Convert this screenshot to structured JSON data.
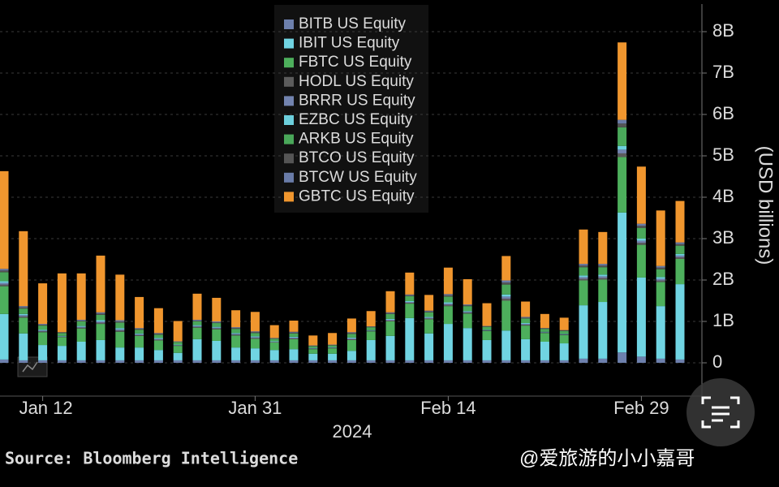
{
  "chart_data": {
    "type": "stacked_bar",
    "categories": [
      null,
      null,
      "Jan 12",
      null,
      null,
      null,
      null,
      null,
      null,
      null,
      null,
      null,
      null,
      "Jan 31",
      null,
      null,
      null,
      null,
      null,
      null,
      null,
      null,
      null,
      "Feb 14",
      null,
      null,
      null,
      null,
      null,
      null,
      null,
      null,
      null,
      "Feb 29",
      null,
      null
    ],
    "x_label": "2024",
    "y_label": "(USD billions)",
    "ylim": [
      0,
      8.6
    ],
    "yticks": [
      0,
      {
        "value": 1,
        "label": "1B"
      },
      {
        "value": 2,
        "label": "2B"
      },
      {
        "value": 3,
        "label": "3B"
      },
      {
        "value": 4,
        "label": "4B"
      },
      {
        "value": 5,
        "label": "5B"
      },
      {
        "value": 6,
        "label": "6B"
      },
      {
        "value": 7,
        "label": "7B"
      },
      {
        "value": 8,
        "label": "8B"
      }
    ],
    "grid": true,
    "legend": "top",
    "source": "Source: Bloomberg Intelligence",
    "series": [
      {
        "name": "BITB US Equity",
        "color": "#6d80ad",
        "values": [
          0.08,
          0.06,
          0.06,
          0.06,
          0.06,
          0.06,
          0.06,
          0.06,
          0.06,
          0.06,
          0.06,
          0.06,
          0.06,
          0.06,
          0.06,
          0.06,
          0.06,
          0.06,
          0.06,
          0.06,
          0.06,
          0.06,
          0.06,
          0.06,
          0.06,
          0.06,
          0.06,
          0.06,
          0.06,
          0.06,
          0.1,
          0.1,
          0.25,
          0.15,
          0.1,
          0.08
        ]
      },
      {
        "name": "IBIT US Equity",
        "color": "#70d4e2",
        "values": [
          1.1,
          0.65,
          0.37,
          0.35,
          0.45,
          0.49,
          0.31,
          0.31,
          0.25,
          0.18,
          0.51,
          0.47,
          0.31,
          0.29,
          0.25,
          0.27,
          0.16,
          0.16,
          0.23,
          0.49,
          0.59,
          1.02,
          0.65,
          0.88,
          0.78,
          0.49,
          0.72,
          0.51,
          0.45,
          0.41,
          1.29,
          1.37,
          3.38,
          1.91,
          1.27,
          1.82
        ]
      },
      {
        "name": "FBTC US Equity",
        "color": "#4daf5c",
        "values": [
          0.67,
          0.38,
          0.31,
          0.21,
          0.32,
          0.39,
          0.38,
          0.28,
          0.23,
          0.17,
          0.28,
          0.28,
          0.29,
          0.23,
          0.18,
          0.24,
          0.11,
          0.13,
          0.26,
          0.21,
          0.35,
          0.35,
          0.34,
          0.43,
          0.35,
          0.22,
          0.72,
          0.33,
          0.21,
          0.2,
          0.6,
          0.54,
          1.34,
          0.79,
          0.58,
          0.61
        ]
      },
      {
        "name": "HODL US Equity",
        "color": "#5c5c5c",
        "values": [
          0.04,
          0.03,
          0.02,
          0.01,
          0.02,
          0.03,
          0.03,
          0.02,
          0.02,
          0.01,
          0.02,
          0.02,
          0.02,
          0.02,
          0.01,
          0.02,
          0.01,
          0.01,
          0.02,
          0.01,
          0.02,
          0.02,
          0.02,
          0.03,
          0.02,
          0.01,
          0.05,
          0.02,
          0.01,
          0.01,
          0.04,
          0.04,
          0.09,
          0.05,
          0.04,
          0.04
        ]
      },
      {
        "name": "BRRR US Equity",
        "color": "#7384b0",
        "values": [
          0.04,
          0.03,
          0.02,
          0.01,
          0.02,
          0.03,
          0.03,
          0.02,
          0.02,
          0.01,
          0.02,
          0.02,
          0.02,
          0.02,
          0.01,
          0.02,
          0.01,
          0.01,
          0.02,
          0.01,
          0.02,
          0.02,
          0.02,
          0.03,
          0.02,
          0.01,
          0.05,
          0.02,
          0.01,
          0.01,
          0.04,
          0.04,
          0.09,
          0.05,
          0.04,
          0.04
        ]
      },
      {
        "name": "EZBC US Equity",
        "color": "#6ccfdc",
        "values": [
          0.04,
          0.03,
          0.02,
          0.01,
          0.02,
          0.03,
          0.03,
          0.02,
          0.02,
          0.01,
          0.02,
          0.02,
          0.02,
          0.02,
          0.01,
          0.02,
          0.01,
          0.01,
          0.02,
          0.01,
          0.02,
          0.02,
          0.02,
          0.03,
          0.02,
          0.01,
          0.05,
          0.02,
          0.01,
          0.01,
          0.04,
          0.04,
          0.09,
          0.05,
          0.04,
          0.04
        ]
      },
      {
        "name": "ARKB US Equity",
        "color": "#4aa85a",
        "values": [
          0.22,
          0.13,
          0.1,
          0.07,
          0.11,
          0.13,
          0.13,
          0.09,
          0.08,
          0.06,
          0.09,
          0.09,
          0.1,
          0.08,
          0.06,
          0.08,
          0.04,
          0.04,
          0.09,
          0.07,
          0.12,
          0.12,
          0.11,
          0.14,
          0.12,
          0.07,
          0.24,
          0.11,
          0.07,
          0.07,
          0.2,
          0.18,
          0.45,
          0.26,
          0.19,
          0.2
        ]
      },
      {
        "name": "BTCO US Equity",
        "color": "#555555",
        "values": [
          0.04,
          0.03,
          0.02,
          0.01,
          0.02,
          0.03,
          0.03,
          0.02,
          0.02,
          0.01,
          0.02,
          0.02,
          0.02,
          0.02,
          0.01,
          0.02,
          0.01,
          0.01,
          0.02,
          0.01,
          0.02,
          0.02,
          0.02,
          0.03,
          0.02,
          0.01,
          0.05,
          0.02,
          0.01,
          0.01,
          0.04,
          0.04,
          0.09,
          0.05,
          0.04,
          0.04
        ]
      },
      {
        "name": "BTCW US Equity",
        "color": "#6a7ca8",
        "values": [
          0.04,
          0.03,
          0.02,
          0.01,
          0.02,
          0.03,
          0.03,
          0.02,
          0.02,
          0.01,
          0.02,
          0.02,
          0.02,
          0.02,
          0.01,
          0.02,
          0.01,
          0.01,
          0.02,
          0.01,
          0.02,
          0.02,
          0.02,
          0.03,
          0.02,
          0.01,
          0.05,
          0.02,
          0.01,
          0.01,
          0.04,
          0.04,
          0.09,
          0.05,
          0.04,
          0.04
        ]
      },
      {
        "name": "GBTC US Equity",
        "color": "#f0962e",
        "values": [
          2.36,
          1.81,
          0.98,
          1.42,
          1.12,
          1.37,
          1.1,
          0.75,
          0.6,
          0.49,
          0.63,
          0.57,
          0.41,
          0.47,
          0.31,
          0.27,
          0.24,
          0.28,
          0.33,
          0.37,
          0.51,
          0.53,
          0.38,
          0.64,
          0.61,
          0.55,
          0.59,
          0.37,
          0.34,
          0.3,
          0.83,
          0.77,
          1.87,
          1.38,
          1.34,
          1.0
        ]
      }
    ]
  },
  "watermark": "@爱旅游的小小嘉哥"
}
